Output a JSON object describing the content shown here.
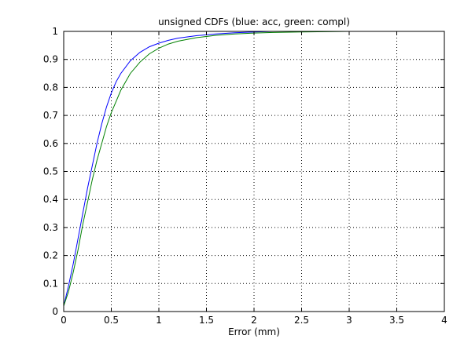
{
  "chart_data": {
    "type": "line",
    "title": "unsigned CDFs (blue: acc, green: compl)",
    "xlabel": "Error (mm)",
    "ylabel": "",
    "xlim": [
      0,
      4
    ],
    "ylim": [
      0,
      1
    ],
    "xticks": [
      0,
      0.5,
      1,
      1.5,
      2,
      2.5,
      3,
      3.5,
      4
    ],
    "xtick_labels": [
      "0",
      "0.5",
      "1",
      "1.5",
      "2",
      "2.5",
      "3",
      "3.5",
      "4"
    ],
    "yticks": [
      0,
      0.1,
      0.2,
      0.3,
      0.4,
      0.5,
      0.6,
      0.7,
      0.8,
      0.9,
      1
    ],
    "ytick_labels": [
      "0",
      "0.1",
      "0.2",
      "0.3",
      "0.4",
      "0.5",
      "0.6",
      "0.7",
      "0.8",
      "0.9",
      "1"
    ],
    "grid": true,
    "series": [
      {
        "color": "#0000ff",
        "x": [
          0,
          0.05,
          0.1,
          0.15,
          0.2,
          0.25,
          0.3,
          0.35,
          0.4,
          0.45,
          0.5,
          0.55,
          0.6,
          0.7,
          0.8,
          0.9,
          1.0,
          1.1,
          1.2,
          1.4,
          1.6,
          1.8,
          2.0,
          2.2
        ],
        "y": [
          0.02,
          0.09,
          0.17,
          0.26,
          0.35,
          0.44,
          0.52,
          0.6,
          0.67,
          0.73,
          0.78,
          0.82,
          0.85,
          0.895,
          0.925,
          0.945,
          0.958,
          0.968,
          0.976,
          0.985,
          0.991,
          0.995,
          0.998,
          1.0
        ]
      },
      {
        "color": "#008000",
        "x": [
          0,
          0.05,
          0.1,
          0.15,
          0.2,
          0.25,
          0.3,
          0.35,
          0.4,
          0.45,
          0.5,
          0.55,
          0.6,
          0.7,
          0.8,
          0.9,
          1.0,
          1.1,
          1.2,
          1.4,
          1.6,
          1.8,
          2.0,
          2.2,
          2.5,
          3.0,
          3.2
        ],
        "y": [
          0.02,
          0.07,
          0.14,
          0.22,
          0.31,
          0.39,
          0.47,
          0.54,
          0.6,
          0.66,
          0.71,
          0.75,
          0.79,
          0.85,
          0.89,
          0.92,
          0.94,
          0.955,
          0.965,
          0.978,
          0.986,
          0.991,
          0.994,
          0.996,
          0.998,
          1.0,
          1.0
        ]
      }
    ]
  }
}
